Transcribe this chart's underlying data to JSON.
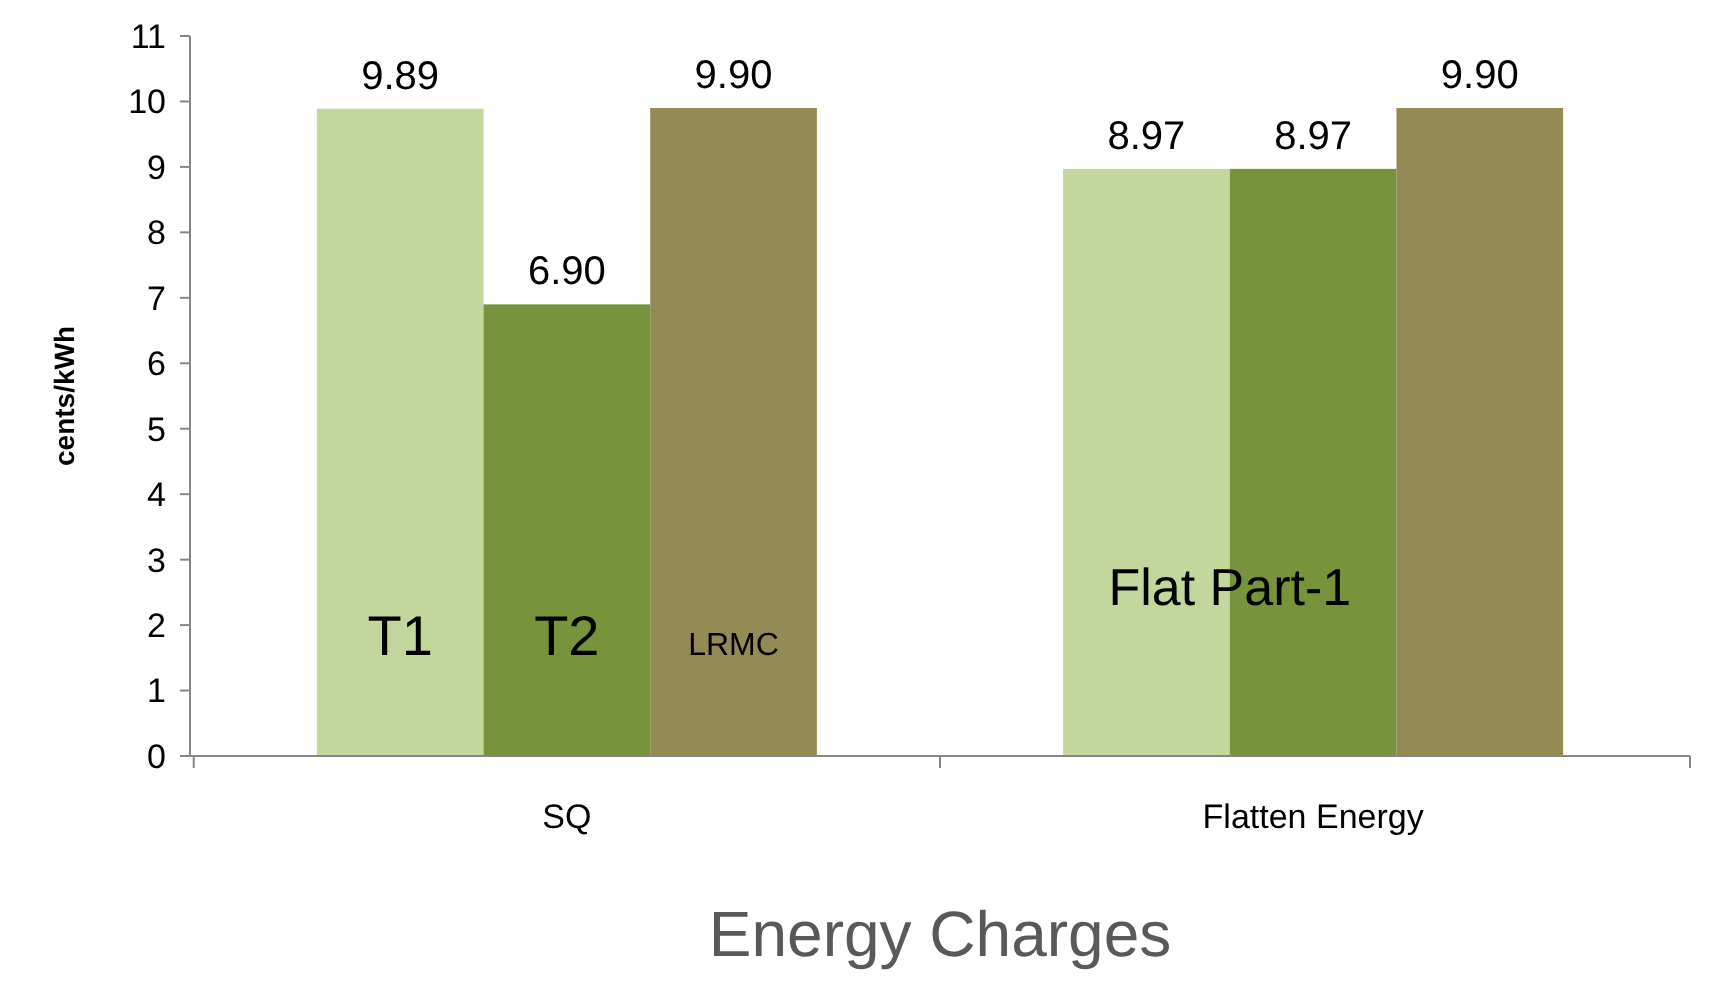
{
  "chart_data": {
    "type": "bar",
    "title": "Energy Charges",
    "ylabel": "cents/kWh",
    "categories": [
      "SQ",
      "Flatten Energy"
    ],
    "series": [
      {
        "name": "T1",
        "color": "#c3d69b",
        "values": [
          9.89,
          8.97
        ],
        "value_labels": [
          "9.89",
          "8.97"
        ]
      },
      {
        "name": "T2",
        "color": "#77933c",
        "values": [
          6.9,
          8.97
        ],
        "value_labels": [
          "6.90",
          "8.97"
        ]
      },
      {
        "name": "LRMC",
        "color": "#948a54",
        "values": [
          9.9,
          9.9
        ],
        "value_labels": [
          "9.90",
          "9.90"
        ]
      }
    ],
    "ylim": [
      0,
      11
    ],
    "yticks": [
      0,
      1,
      2,
      3,
      4,
      5,
      6,
      7,
      8,
      9,
      10,
      11
    ],
    "grid": false,
    "annotations": [
      "Flat Part-1"
    ]
  }
}
